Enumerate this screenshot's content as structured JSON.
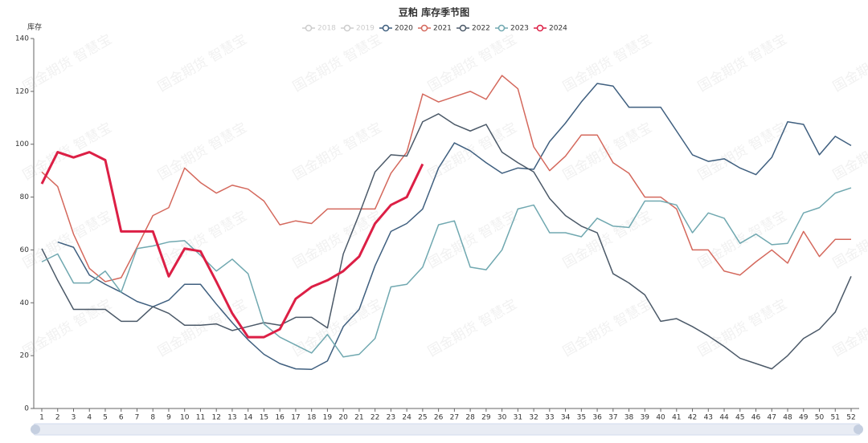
{
  "chart_data": {
    "type": "line",
    "title": "豆粕 库存季节图",
    "y_label": "库存",
    "watermark": "国金期货 智慧宝",
    "categories": [
      "1",
      "2",
      "3",
      "4",
      "5",
      "6",
      "7",
      "8",
      "9",
      "10",
      "11",
      "12",
      "13",
      "14",
      "15",
      "16",
      "17",
      "18",
      "19",
      "20",
      "21",
      "22",
      "23",
      "24",
      "25",
      "26",
      "27",
      "28",
      "29",
      "30",
      "31",
      "32",
      "33",
      "34",
      "35",
      "36",
      "37",
      "38",
      "39",
      "40",
      "41",
      "42",
      "43",
      "44",
      "45",
      "46",
      "47",
      "48",
      "49",
      "50",
      "51",
      "52"
    ],
    "ylim": [
      0,
      140
    ],
    "yticks": [
      0,
      20,
      40,
      60,
      80,
      100,
      120,
      140
    ],
    "series": [
      {
        "name": "2018",
        "color": "#cccccc",
        "visible": false,
        "values": [
          null,
          null,
          null,
          null,
          null,
          null,
          null,
          null,
          null,
          null,
          null,
          null,
          null,
          null,
          null,
          null,
          null,
          null,
          null,
          null,
          null,
          null,
          null,
          null,
          null,
          null,
          null,
          null,
          null,
          null,
          null,
          null,
          null,
          null,
          null,
          null,
          null,
          null,
          null,
          null,
          null,
          null,
          null,
          null,
          null,
          null,
          null,
          null,
          null,
          null,
          null,
          null
        ]
      },
      {
        "name": "2019",
        "color": "#cccccc",
        "visible": false,
        "values": [
          null,
          null,
          null,
          null,
          null,
          null,
          null,
          null,
          null,
          null,
          null,
          null,
          null,
          null,
          null,
          null,
          null,
          null,
          null,
          null,
          null,
          null,
          null,
          null,
          null,
          null,
          null,
          null,
          null,
          null,
          null,
          null,
          null,
          null,
          null,
          null,
          null,
          null,
          null,
          null,
          null,
          null,
          null,
          null,
          null,
          null,
          null,
          null,
          null,
          null,
          null,
          null
        ]
      },
      {
        "name": "2020",
        "color": "#3f5f7f",
        "visible": true,
        "values": [
          null,
          63,
          61,
          50.5,
          47,
          44,
          40.5,
          38.5,
          41,
          47,
          47,
          39.5,
          32.5,
          26,
          20.5,
          17,
          15,
          14.8,
          18,
          31,
          37.5,
          54,
          67,
          70,
          75.5,
          91,
          100.5,
          97.5,
          93,
          89,
          91,
          90.5,
          101,
          108,
          116,
          123,
          122,
          114,
          114,
          114,
          105,
          96,
          93.5,
          94.5,
          91,
          88.5,
          95,
          108.5,
          107.5,
          96,
          103,
          99.5
        ]
      },
      {
        "name": "2021",
        "color": "#d4685c",
        "visible": true,
        "values": [
          89.5,
          84,
          66,
          53,
          48,
          49.5,
          61,
          73,
          76,
          91,
          85.5,
          81.5,
          84.5,
          83,
          78.5,
          69.5,
          71,
          70,
          75.5,
          75.5,
          75.5,
          75.5,
          89,
          97,
          119,
          116,
          118,
          120,
          117,
          126,
          121,
          99,
          90,
          95.5,
          103.5,
          103.5,
          93,
          89,
          80,
          80,
          75.5,
          60,
          60,
          52,
          50.5,
          55.5,
          60,
          55,
          67,
          57.5,
          64,
          64
        ]
      },
      {
        "name": "2022",
        "color": "#4b5968",
        "visible": true,
        "values": [
          60.5,
          48.5,
          37.5,
          37.5,
          37.5,
          33,
          33,
          38.5,
          36,
          31.5,
          31.5,
          32,
          29.5,
          31,
          32.5,
          31.5,
          34.5,
          34.5,
          30.5,
          58.5,
          73.5,
          89.5,
          96,
          95.5,
          108.5,
          111.5,
          107.5,
          105,
          107.5,
          97,
          93,
          89.5,
          79.5,
          73,
          69,
          66.5,
          51,
          47.5,
          43,
          33,
          34,
          31,
          27.5,
          23.5,
          19,
          17,
          15,
          20,
          26.5,
          30,
          36.5,
          50
        ]
      },
      {
        "name": "2023",
        "color": "#70a8b0",
        "visible": true,
        "values": [
          55.5,
          58.5,
          47.5,
          47.5,
          52,
          44,
          60.5,
          61.5,
          63,
          63.5,
          58,
          52,
          56.5,
          51,
          32,
          27,
          24,
          21,
          28,
          19.5,
          20.5,
          26.5,
          46,
          47,
          53.5,
          69.5,
          71,
          53.5,
          52.5,
          60,
          75.5,
          77,
          66.5,
          66.5,
          65,
          72,
          69,
          68.5,
          78.5,
          78.5,
          77,
          66.5,
          74,
          72,
          62.5,
          66,
          62,
          62.5,
          74,
          76,
          81.5,
          83.5
        ]
      },
      {
        "name": "2024",
        "color": "#dc1f45",
        "visible": true,
        "width": 3,
        "values": [
          85,
          97,
          95,
          97,
          94,
          67,
          67,
          67,
          50,
          60.5,
          59.5,
          48,
          36,
          27,
          27,
          30,
          41.5,
          46,
          48.5,
          52,
          57.5,
          70,
          77,
          80,
          92.5,
          null,
          null,
          null,
          null,
          null,
          null,
          null,
          null,
          null,
          null,
          null,
          null,
          null,
          null,
          null,
          null,
          null,
          null,
          null,
          null,
          null,
          null,
          null,
          null,
          null,
          null,
          null
        ]
      }
    ]
  }
}
